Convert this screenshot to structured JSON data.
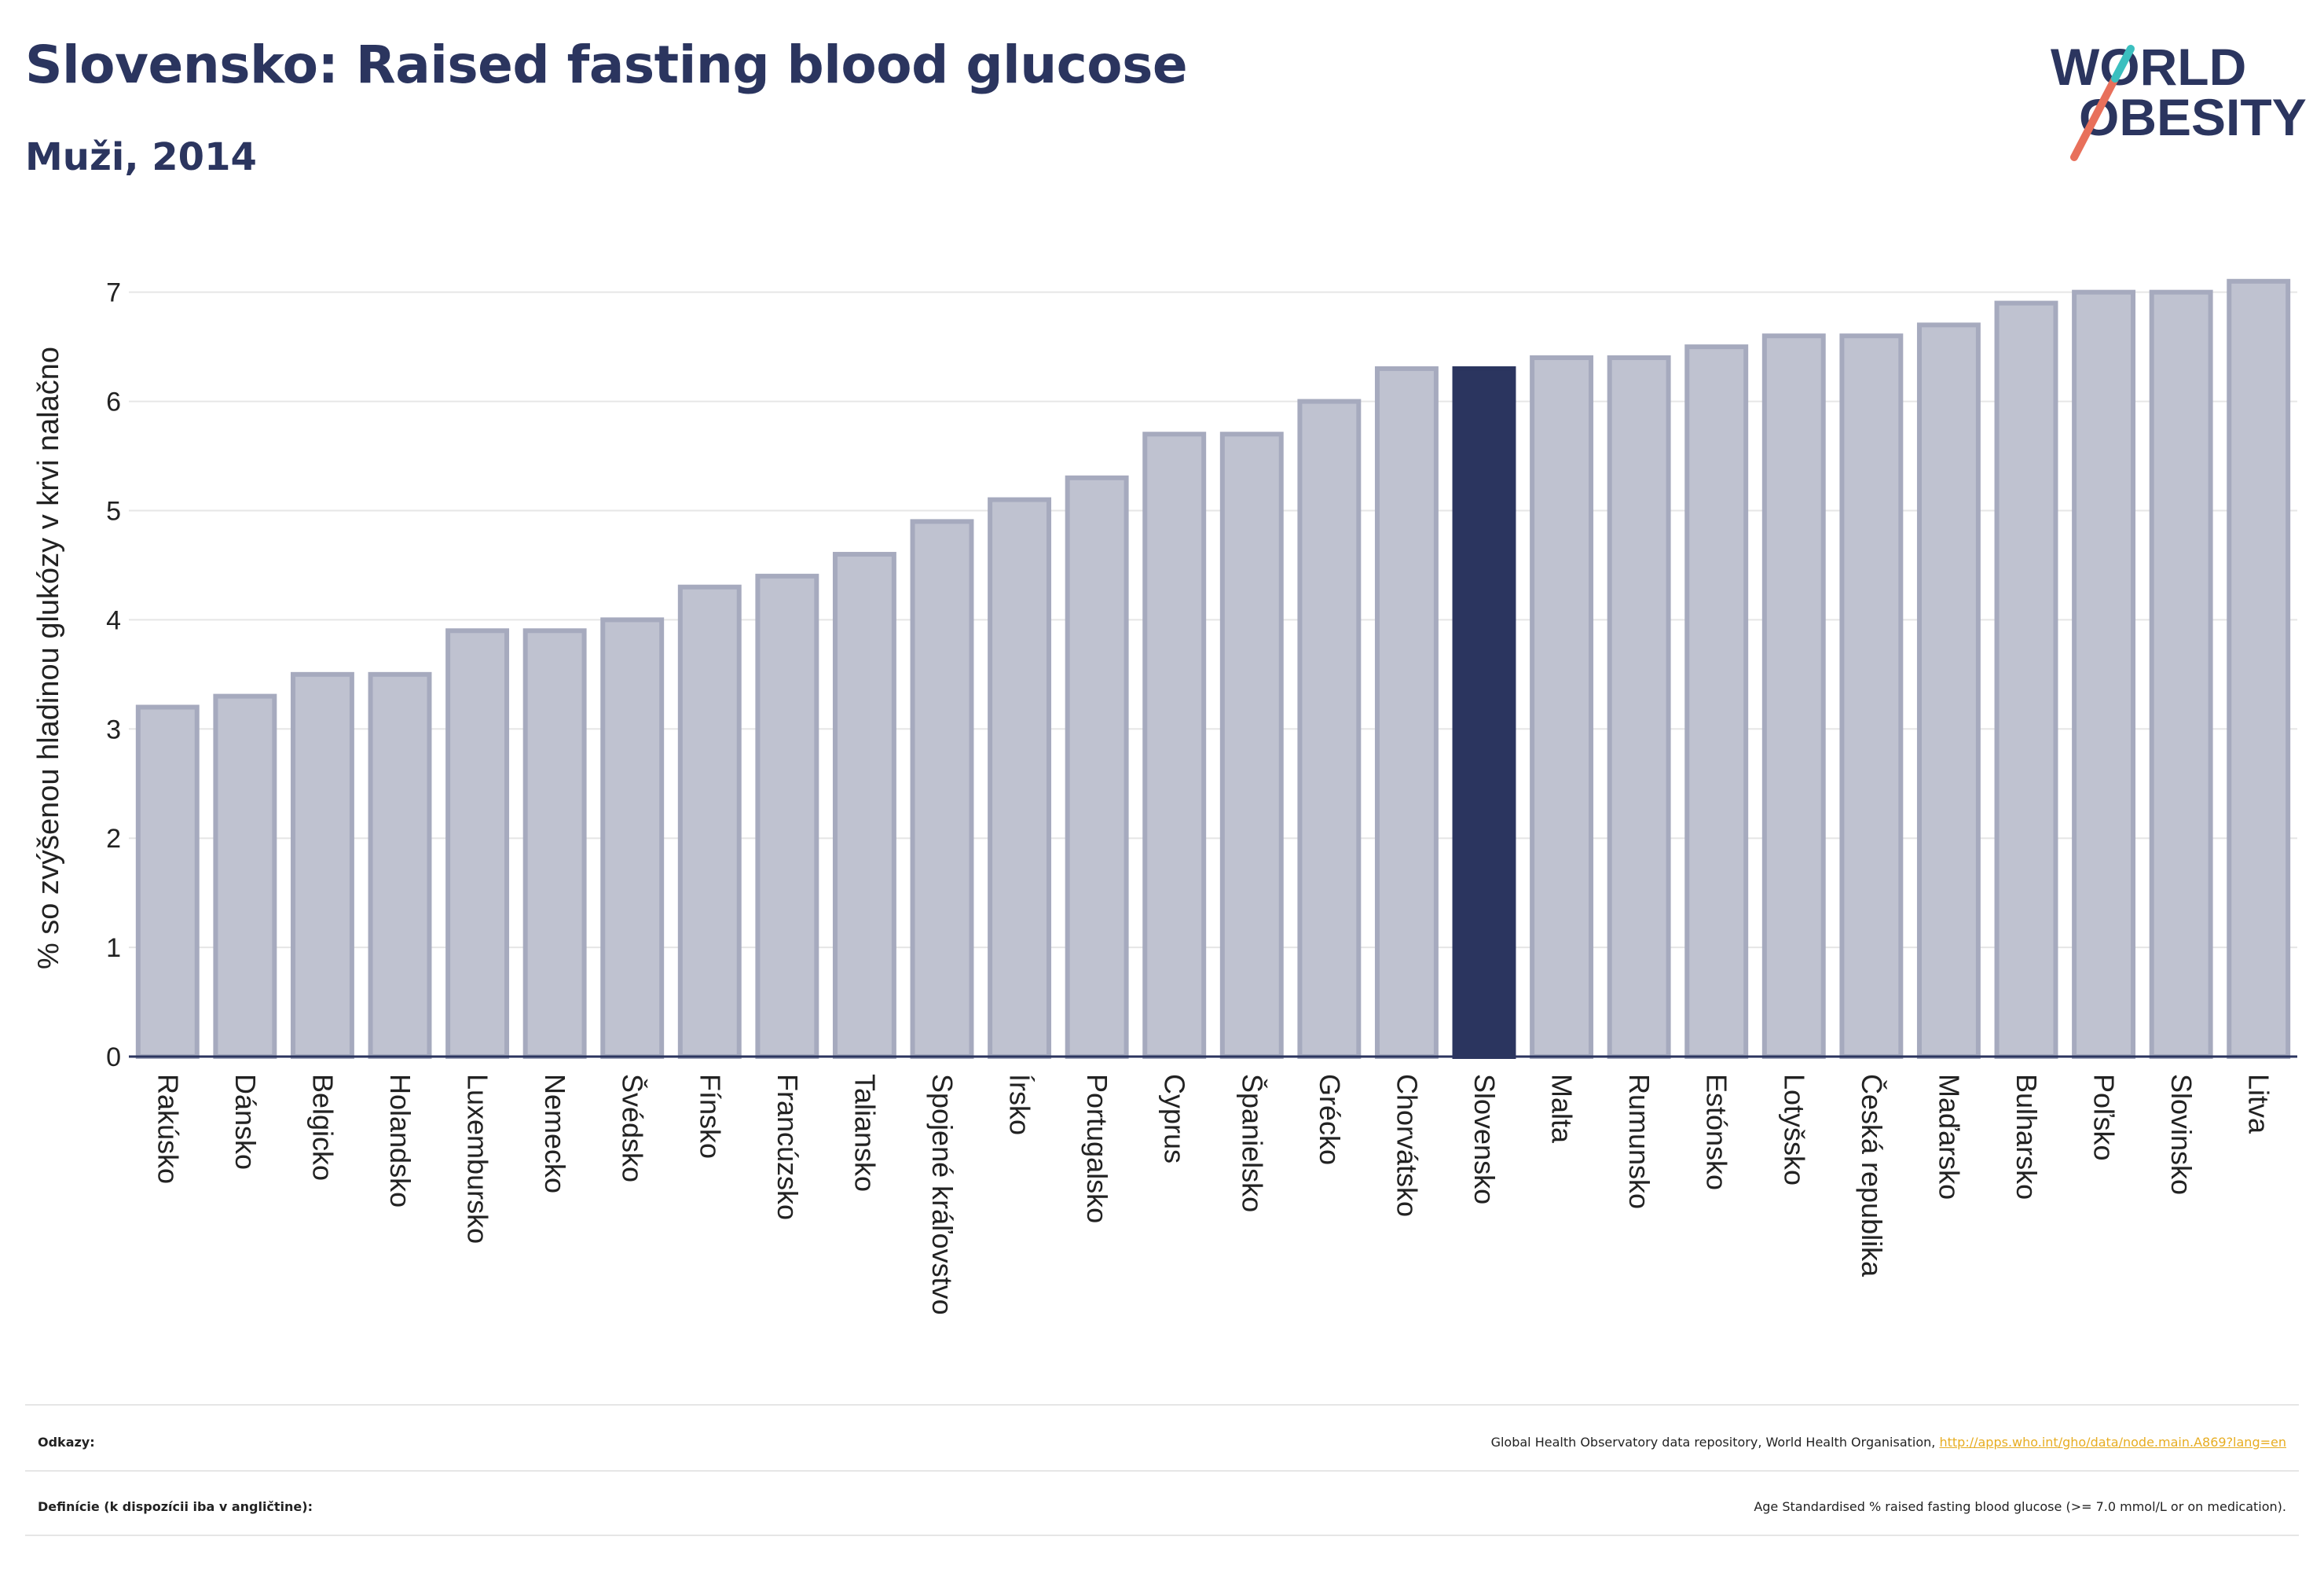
{
  "header": {
    "title": "Slovensko: Raised fasting blood glucose",
    "subtitle": "Muži, 2014"
  },
  "logo": {
    "line1": "WORLD",
    "line2": "OBESITY",
    "accent_color": "#e8705b",
    "accent_color2": "#3bbfbf",
    "text_color": "#2b355f"
  },
  "chart_data": {
    "type": "bar",
    "ylabel": "% so zvýšenou hladinou glukózy v krvi nalačno",
    "xlabel": "",
    "ylim": [
      0,
      7.3
    ],
    "yticks": [
      0,
      1,
      2,
      3,
      4,
      5,
      6,
      7
    ],
    "grid": true,
    "highlight": "Slovensko",
    "bar_color": "#bfc2d0",
    "bar_border_color": "#a6aabe",
    "highlight_color": "#2b355f",
    "categories": [
      "Rakúsko",
      "Dánsko",
      "Belgicko",
      "Holandsko",
      "Luxembursko",
      "Nemecko",
      "Švédsko",
      "Fínsko",
      "Francúzsko",
      "Taliansko",
      "Spojené kráľovstvo",
      "Írsko",
      "Portugalsko",
      "Cyprus",
      "Španielsko",
      "Grécko",
      "Chorvátsko",
      "Slovensko",
      "Malta",
      "Rumunsko",
      "Estónsko",
      "Lotyšsko",
      "Česká republika",
      "Maďarsko",
      "Bulharsko",
      "Poľsko",
      "Slovinsko",
      "Litva"
    ],
    "values": [
      3.2,
      3.3,
      3.5,
      3.5,
      3.9,
      3.9,
      4.0,
      4.3,
      4.4,
      4.6,
      4.9,
      5.1,
      5.3,
      5.7,
      5.7,
      6.0,
      6.3,
      6.3,
      6.4,
      6.4,
      6.5,
      6.6,
      6.6,
      6.7,
      6.9,
      7.0,
      7.0,
      7.1
    ]
  },
  "footer": {
    "sources_label": "Odkazy:",
    "sources_text": "Global Health Observatory data repository, World Health Organisation,",
    "sources_link": "http://apps.who.int/gho/data/node.main.A869?lang=en",
    "definitions_label": "Definície (k dispozícii iba v angličtine):",
    "definitions_text": "Age Standardised % raised fasting blood glucose (>= 7.0 mmol/L or on medication)."
  }
}
